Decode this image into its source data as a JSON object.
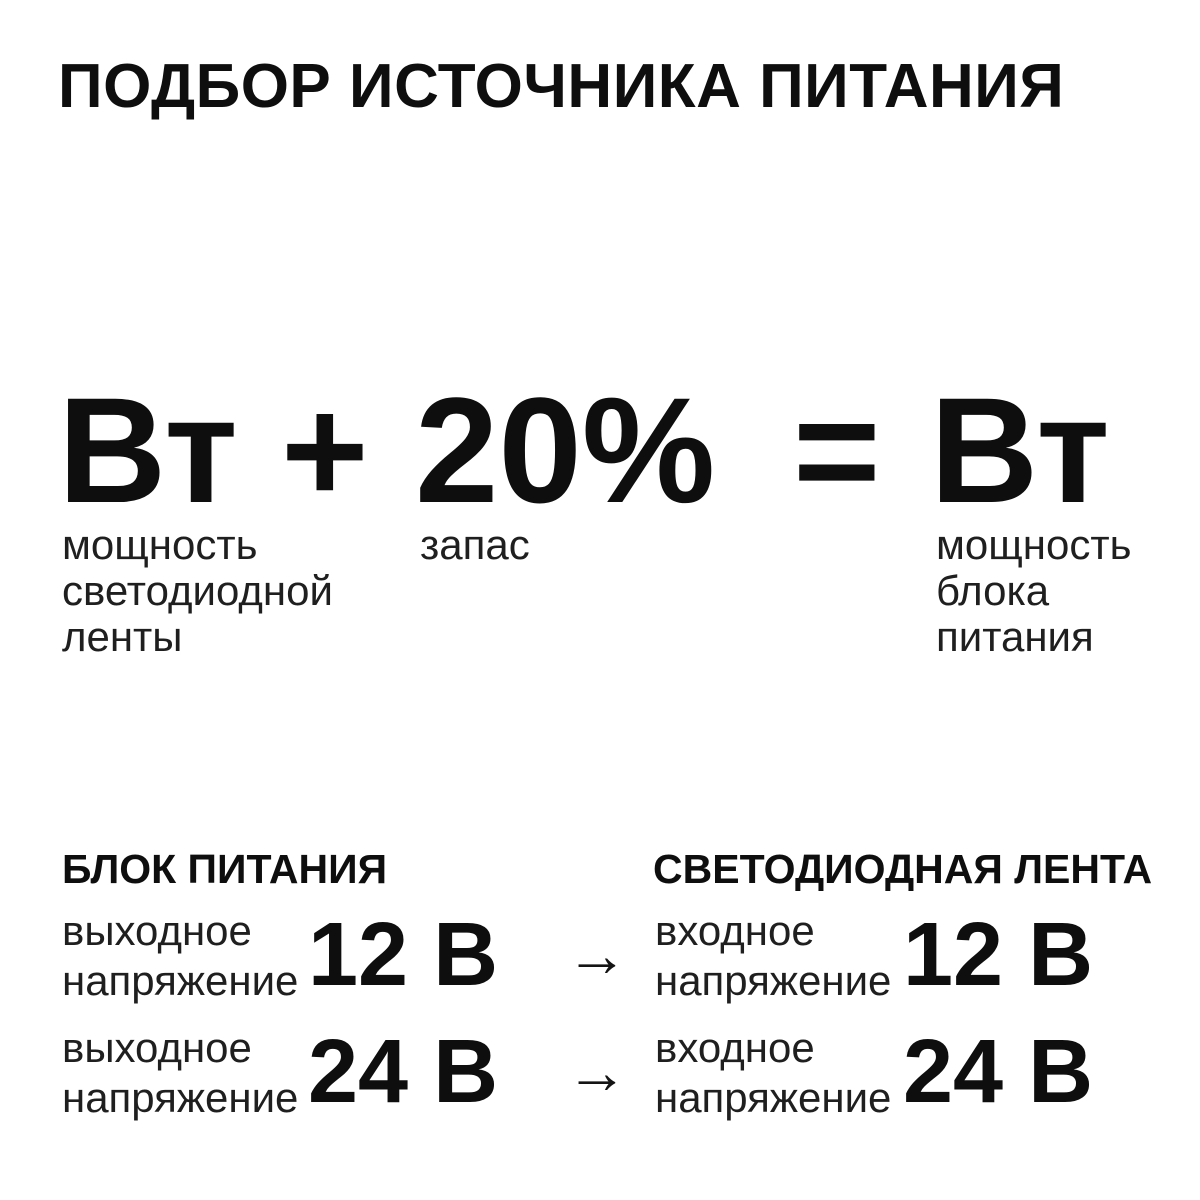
{
  "title": "ПОДБОР ИСТОЧНИКА ПИТАНИЯ",
  "formula": {
    "led_power_value": "Вт",
    "plus_operator": "+",
    "margin_value": "20%",
    "equals_operator": "=",
    "psu_power_value": "Вт",
    "led_power_label_lines": [
      "мощность",
      "светодиодной",
      "ленты"
    ],
    "margin_label": "запас",
    "psu_power_label_lines": [
      "мощность",
      "блока",
      "питания"
    ]
  },
  "voltage_table": {
    "left_header": "БЛОК ПИТАНИЯ",
    "right_header": "СВЕТОДИОДНАЯ ЛЕНТА",
    "arrow_icon": "→",
    "rows": [
      {
        "left_label_lines": [
          "выходное",
          "напряжение"
        ],
        "left_value": "12 В",
        "right_label_lines": [
          "входное",
          "напряжение"
        ],
        "right_value": "12 В"
      },
      {
        "left_label_lines": [
          "выходное",
          "напряжение"
        ],
        "left_value": "24 В",
        "right_label_lines": [
          "входное",
          "напряжение"
        ],
        "right_value": "24 В"
      }
    ]
  },
  "colors": {
    "background": "#ffffff",
    "text_primary": "#0e0e0e",
    "text_secondary": "#1f1f1f"
  }
}
